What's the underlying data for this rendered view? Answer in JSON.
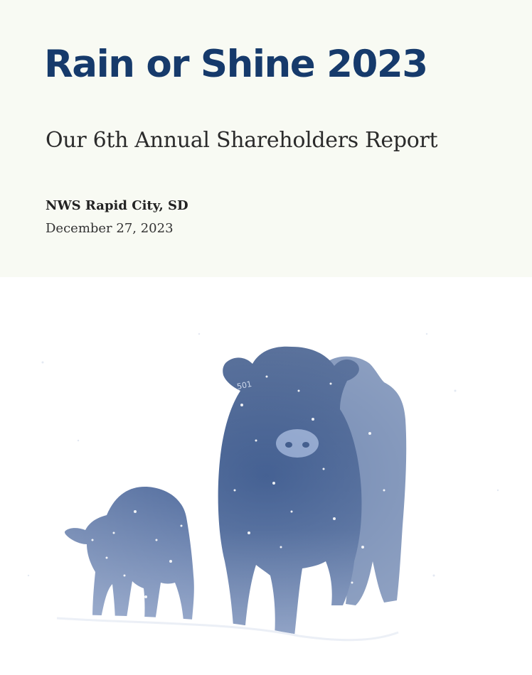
{
  "report": {
    "title": "Rain or Shine 2023",
    "subtitle": "Our 6th Annual Shareholders Report",
    "organization": "NWS Rapid City, SD",
    "date": "December 27, 2023"
  },
  "photo": {
    "ear_tag": "501"
  },
  "colors": {
    "title": "#163a6b",
    "header_background": "#f8faf3",
    "cattle": "#3c5a8c"
  }
}
